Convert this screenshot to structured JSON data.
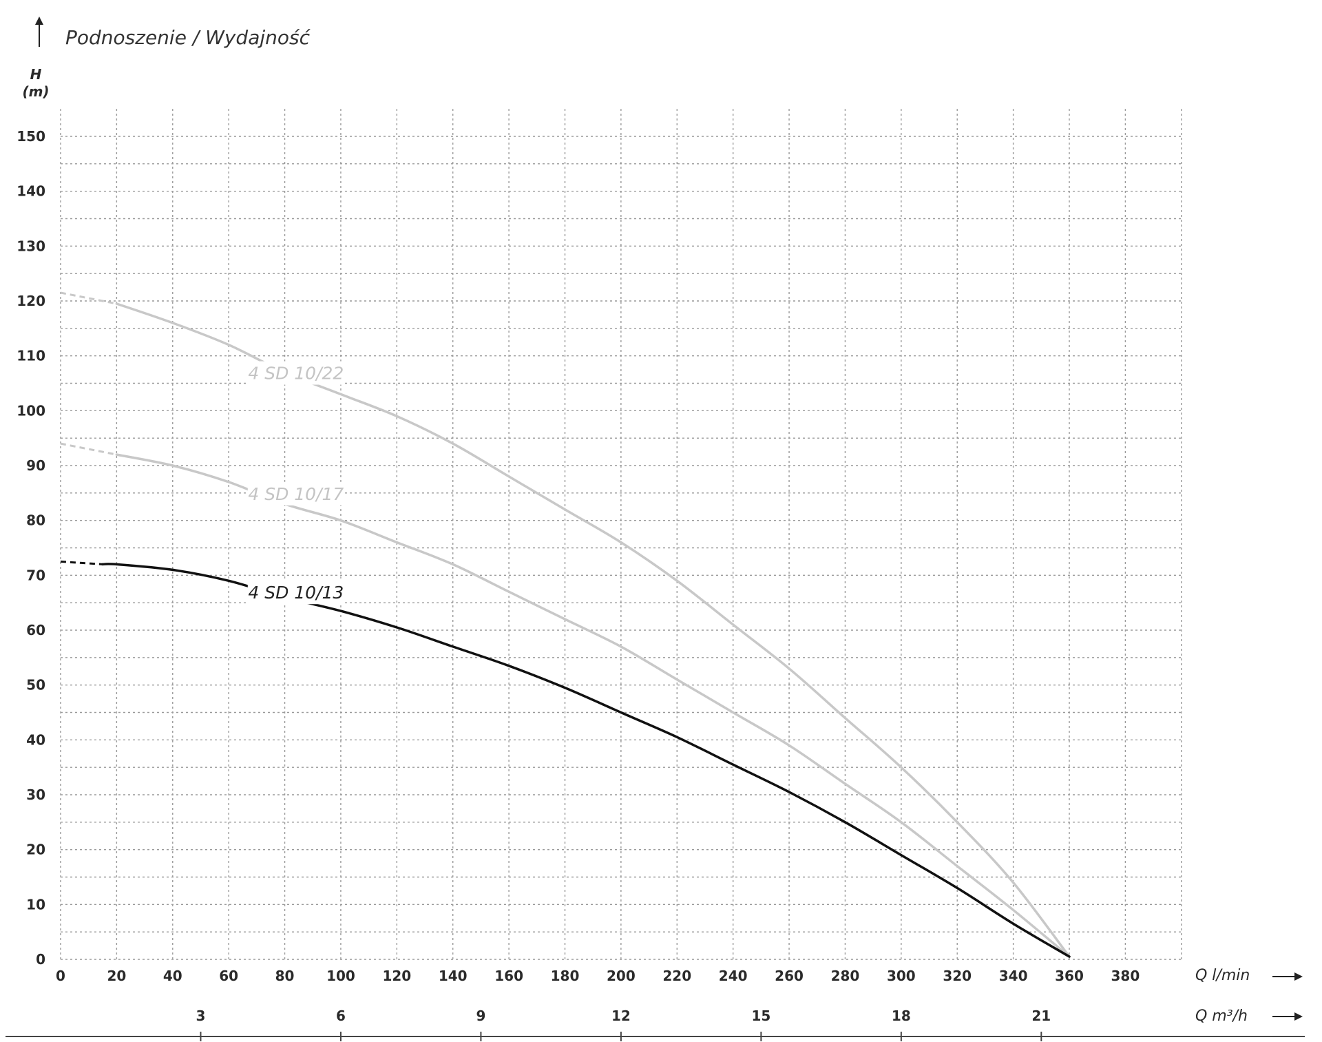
{
  "chart_data": {
    "type": "line",
    "title": "Podnoszenie / Wydajność",
    "ylabel_symbol": "H",
    "ylabel_unit": "(m)",
    "xlabel": "Q l/min",
    "xlabel2": "Q m³/h",
    "xlim": [
      0,
      400
    ],
    "ylim": [
      0,
      150
    ],
    "y_ticks": [
      0,
      10,
      20,
      30,
      40,
      50,
      60,
      70,
      80,
      90,
      100,
      110,
      120,
      130,
      140,
      150
    ],
    "x_ticks": [
      0,
      20,
      40,
      60,
      80,
      100,
      120,
      140,
      160,
      180,
      200,
      220,
      240,
      260,
      280,
      300,
      320,
      340,
      360,
      380
    ],
    "x2_ticks": [
      3,
      6,
      9,
      12,
      15,
      18,
      21
    ],
    "grid": true,
    "series": [
      {
        "name": "4 SD 10/22",
        "color": "#c8c8c8",
        "dashed_end_x": 20,
        "label_at": [
          84,
          106
        ],
        "points": [
          [
            0,
            121.5
          ],
          [
            20,
            119.5
          ],
          [
            40,
            116
          ],
          [
            60,
            112
          ],
          [
            80,
            107
          ],
          [
            100,
            103
          ],
          [
            120,
            99
          ],
          [
            140,
            94
          ],
          [
            160,
            88
          ],
          [
            180,
            82
          ],
          [
            200,
            76
          ],
          [
            220,
            69
          ],
          [
            240,
            61
          ],
          [
            260,
            53
          ],
          [
            280,
            44
          ],
          [
            300,
            35
          ],
          [
            320,
            25
          ],
          [
            340,
            14
          ],
          [
            360,
            0.5
          ]
        ]
      },
      {
        "name": "4 SD 10/17",
        "color": "#c8c8c8",
        "dashed_end_x": 20,
        "label_at": [
          84,
          84
        ],
        "points": [
          [
            0,
            94
          ],
          [
            20,
            92
          ],
          [
            40,
            90
          ],
          [
            60,
            87
          ],
          [
            80,
            83
          ],
          [
            100,
            80
          ],
          [
            120,
            76
          ],
          [
            140,
            72
          ],
          [
            160,
            67
          ],
          [
            180,
            62
          ],
          [
            200,
            57
          ],
          [
            220,
            51
          ],
          [
            240,
            45
          ],
          [
            260,
            39
          ],
          [
            280,
            32
          ],
          [
            300,
            25
          ],
          [
            320,
            17
          ],
          [
            340,
            9
          ],
          [
            360,
            0.5
          ]
        ]
      },
      {
        "name": "4 SD 10/13",
        "color": "#111111",
        "dashed_end_x": 15,
        "label_at": [
          84,
          66
        ],
        "points": [
          [
            0,
            72.5
          ],
          [
            15,
            72
          ],
          [
            20,
            72
          ],
          [
            40,
            71
          ],
          [
            60,
            69
          ],
          [
            80,
            66
          ],
          [
            100,
            63.5
          ],
          [
            120,
            60.5
          ],
          [
            140,
            57
          ],
          [
            160,
            53.5
          ],
          [
            180,
            49.5
          ],
          [
            200,
            45
          ],
          [
            220,
            40.5
          ],
          [
            240,
            35.5
          ],
          [
            260,
            30.5
          ],
          [
            280,
            25
          ],
          [
            300,
            19
          ],
          [
            320,
            13
          ],
          [
            340,
            6.5
          ],
          [
            360,
            0.5
          ]
        ]
      }
    ]
  }
}
